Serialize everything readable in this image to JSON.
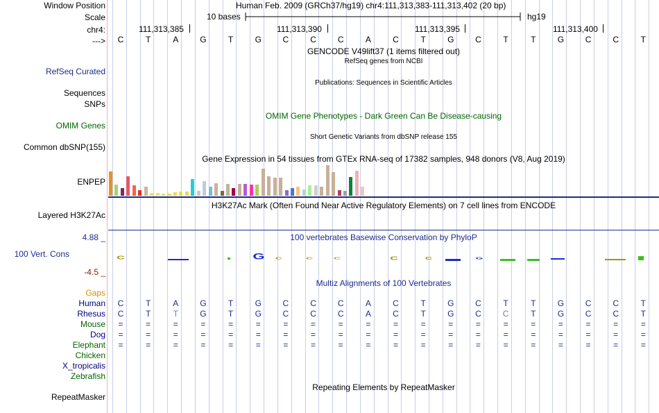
{
  "ruler": {
    "window_position_label": "Window Position",
    "window_position_value": "Human Feb. 2009 (GRCh37/hg19)   chr4:111,313,383-111,313,402 (20 bp)",
    "scale_label": "Scale",
    "scale_value": "10 bases",
    "assembly": "hg19",
    "chrom_label": "chr4:",
    "coordinates": [
      "111,313,385",
      "111,313,390",
      "111,313,395",
      "111,313,400"
    ],
    "strand_label": "--->"
  },
  "sequence": [
    "C",
    "T",
    "A",
    "G",
    "T",
    "G",
    "C",
    "C",
    "C",
    "A",
    "C",
    "T",
    "G",
    "C",
    "T",
    "T",
    "G",
    "C",
    "C",
    "T"
  ],
  "tracks": {
    "gencode_title": "GENCODE V49lift37 (1 items filtered out)",
    "refseq_subtitle": "RefSeq genes from NCBI",
    "refseq_label": "RefSeq Curated",
    "publications_title": "Publications: Sequences in Scientific Articles",
    "sequences_label": "Sequences",
    "snps_label": "SNPs",
    "omim_title": "OMIM Gene Phenotypes - Dark Green Can Be Disease-causing",
    "omim_label": "OMIM Genes",
    "dbsnp_title": "Short Genetic Variants from dbSNP release 155",
    "dbsnp_label": "Common dbSNP(155)",
    "gtex_title": "Gene Expression in 54 tissues from GTEx RNA-seq of 17382 samples, 948 donors (V8, Aug 2019)",
    "gtex_label": "ENPEP",
    "h3k27ac_title": "H3K27Ac Mark (Often Found Near Active Regulatory Elements) on 7 cell lines from ENCODE",
    "h3k27ac_label": "Layered H3K27Ac",
    "phylop_title": "100 vertebrates Basewise Conservation by PhyloP",
    "phylop_label": "100 Vert. Cons",
    "phylop_max": "4.88 _",
    "phylop_min": "-4.5 _",
    "multiz_title": "Multiz Alignments of 100 Vertebrates",
    "gaps_label": "Gaps",
    "repeat_title": "Repeating Elements by RepeatMasker",
    "repeat_label": "RepeatMasker"
  },
  "gtex_bars": [
    {
      "value": 37,
      "color": "#e8902a"
    },
    {
      "value": 17,
      "color": "#a7d36f"
    },
    {
      "value": 12,
      "color": "#7a2b5c"
    },
    {
      "value": 30,
      "color": "#e05a6a"
    },
    {
      "value": 16,
      "color": "#ff6040"
    },
    {
      "value": 9,
      "color": "#e63020"
    },
    {
      "value": 14,
      "color": "#c9b79c"
    },
    {
      "value": 4,
      "color": "#f0e060"
    },
    {
      "value": 4,
      "color": "#f0e060"
    },
    {
      "value": 3,
      "color": "#f0e060"
    },
    {
      "value": 3,
      "color": "#e8dc50"
    },
    {
      "value": 5,
      "color": "#e8dc50"
    },
    {
      "value": 6,
      "color": "#e8dc50"
    },
    {
      "value": 6,
      "color": "#e8dc50"
    },
    {
      "value": 26,
      "color": "#22cdd6"
    },
    {
      "value": 8,
      "color": "#c9c9c9"
    },
    {
      "value": 22,
      "color": "#c0ccd8"
    },
    {
      "value": 14,
      "color": "#7abcd6"
    },
    {
      "value": 19,
      "color": "#c9b39c"
    },
    {
      "value": 8,
      "color": "#7a6a40"
    },
    {
      "value": 18,
      "color": "#c8b098"
    },
    {
      "value": 12,
      "color": "#9c0a3c"
    },
    {
      "value": 18,
      "color": "#c8b098"
    },
    {
      "value": 18,
      "color": "#b060d0"
    },
    {
      "value": 17,
      "color": "#ff30b0"
    },
    {
      "value": 17,
      "color": "#b0d050"
    },
    {
      "value": 42,
      "color": "#c8b098"
    },
    {
      "value": 30,
      "color": "#c8b098"
    },
    {
      "value": 28,
      "color": "#c8b098"
    },
    {
      "value": 28,
      "color": "#c8b098"
    },
    {
      "value": 9,
      "color": "#8c6cc8"
    },
    {
      "value": 12,
      "color": "#4078e0"
    },
    {
      "value": 14,
      "color": "#ffc080"
    },
    {
      "value": 10,
      "color": "#b0d8c0"
    },
    {
      "value": 16,
      "color": "#a8f098"
    },
    {
      "value": 16,
      "color": "#cfcfcf"
    },
    {
      "value": 14,
      "color": "#c8b098"
    },
    {
      "value": 47,
      "color": "#c8b098"
    },
    {
      "value": 36,
      "color": "#c8b098"
    },
    {
      "value": 9,
      "color": "#b04060"
    },
    {
      "value": 8,
      "color": "#a0a0a0"
    },
    {
      "value": 29,
      "color": "#108040"
    },
    {
      "value": 38,
      "color": "#f0b0b8"
    },
    {
      "value": 14,
      "color": "#f0c8b8"
    }
  ],
  "species": [
    {
      "name": "Human",
      "color": "#000080",
      "row": [
        "C",
        "T",
        "A",
        "G",
        "T",
        "G",
        "C",
        "C",
        "C",
        "A",
        "C",
        "T",
        "G",
        "C",
        "T",
        "T",
        "G",
        "C",
        "C",
        "T"
      ]
    },
    {
      "name": "Rhesus",
      "color": "#000080",
      "row": [
        "C",
        "T",
        "T",
        "G",
        "T",
        "G",
        "C",
        "C",
        "C",
        "A",
        "C",
        "T",
        "G",
        "C",
        "C",
        "T",
        "G",
        "C",
        "C",
        "T"
      ]
    },
    {
      "name": "Mouse",
      "color": "#006400",
      "row": [
        "=",
        "=",
        "=",
        "=",
        "=",
        "=",
        "=",
        "=",
        "=",
        "=",
        "=",
        "=",
        "=",
        "=",
        "=",
        "=",
        "=",
        "=",
        "=",
        "="
      ]
    },
    {
      "name": "Dog",
      "color": "#000080",
      "row": [
        "=",
        "=",
        "=",
        "=",
        "=",
        "=",
        "=",
        "=",
        "=",
        "=",
        "=",
        "=",
        "=",
        "=",
        "=",
        "=",
        "=",
        "=",
        "=",
        "="
      ]
    },
    {
      "name": "Elephant",
      "color": "#006400",
      "row": [
        "=",
        "=",
        "=",
        "=",
        "=",
        "=",
        "=",
        "=",
        "=",
        "=",
        "=",
        "=",
        "=",
        "=",
        "=",
        "=",
        "=",
        "=",
        "=",
        "="
      ]
    },
    {
      "name": "Chicken",
      "color": "#006400",
      "row": []
    },
    {
      "name": "X_tropicalis",
      "color": "#000080",
      "row": []
    },
    {
      "name": "Zebrafish",
      "color": "#006400",
      "row": []
    }
  ],
  "colors": {
    "navy": "#1c2c8c",
    "green": "#006400",
    "gaps": "#e08c00",
    "phylop_min": "#8b2500"
  }
}
